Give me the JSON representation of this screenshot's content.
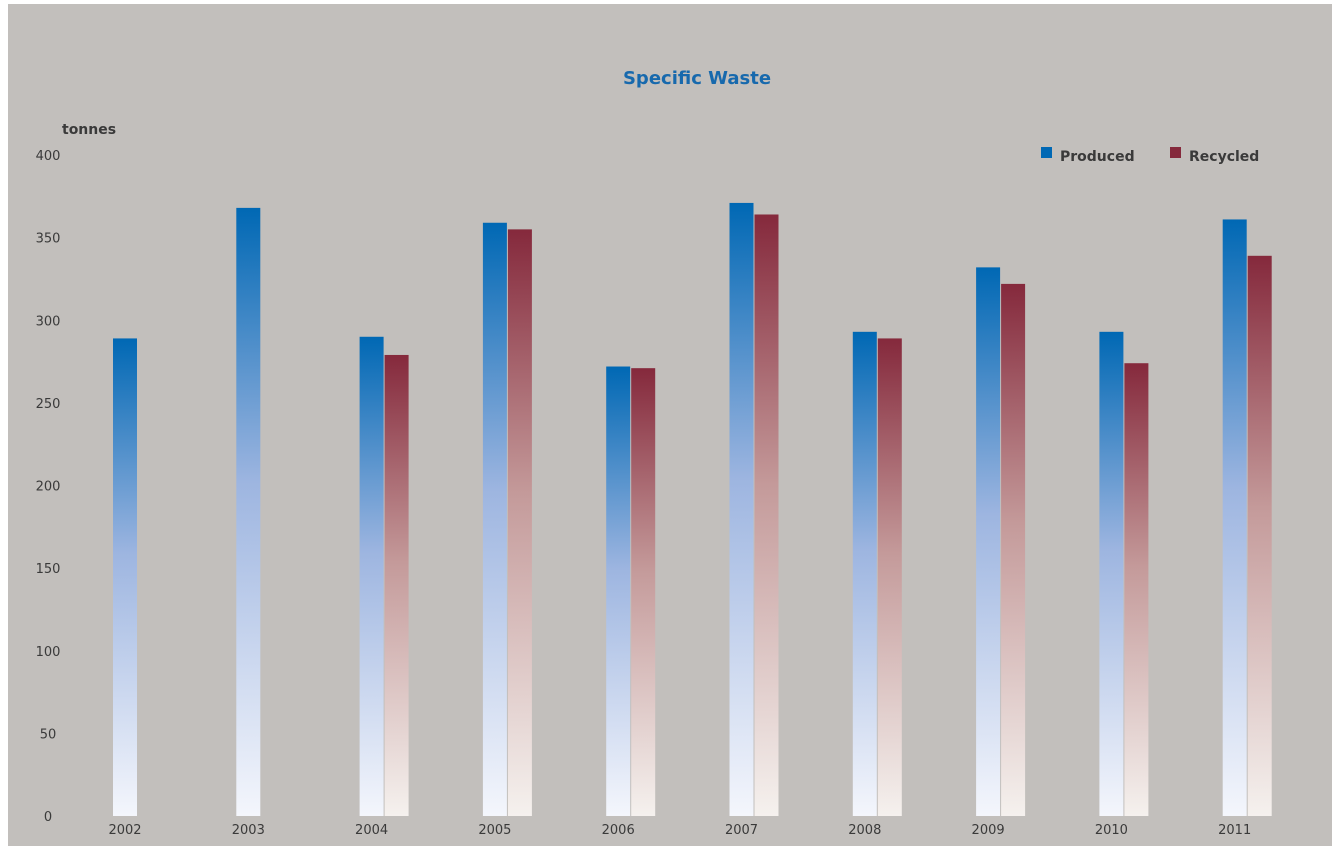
{
  "chart_data": {
    "type": "bar",
    "title": "Specific Waste",
    "ylabel": "tonnes",
    "xlabel": "",
    "ylim": [
      0,
      400
    ],
    "yticks": [
      "0",
      "50",
      "100",
      "150",
      "200",
      "250",
      "300",
      "350",
      "400"
    ],
    "grid": false,
    "legend_position": "top-right",
    "categories": [
      "2002",
      "2003",
      "2004",
      "2005",
      "2006",
      "2007",
      "2008",
      "2009",
      "2010",
      "2011"
    ],
    "series": [
      {
        "name": "Produced",
        "color": "#0068b4",
        "values": [
          289,
          368,
          290,
          359,
          272,
          371,
          293,
          332,
          293,
          361
        ]
      },
      {
        "name": "Recycled",
        "color": "#85293c",
        "values": [
          null,
          null,
          279,
          355,
          271,
          364,
          289,
          322,
          274,
          339
        ]
      }
    ]
  }
}
